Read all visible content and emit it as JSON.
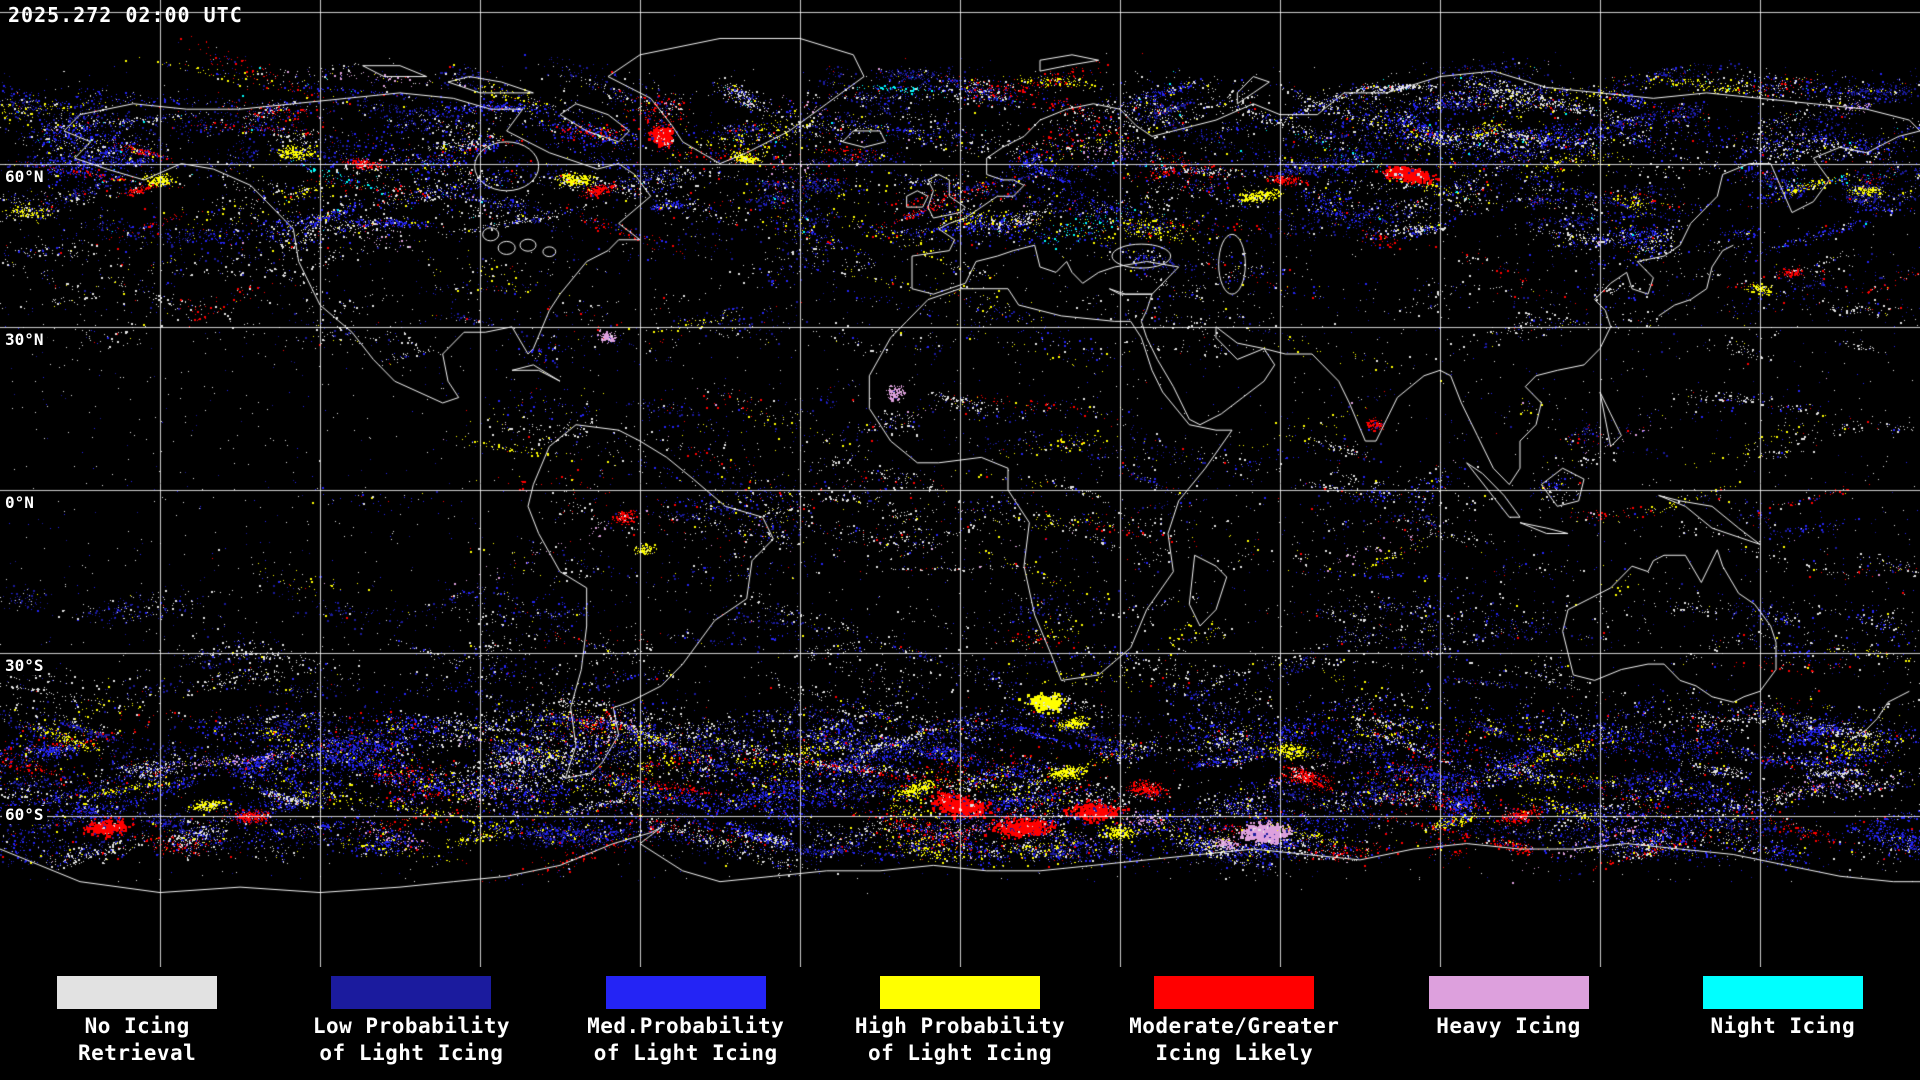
{
  "header": {
    "timestamp": "2025.272 02:00 UTC"
  },
  "map": {
    "latitude_labels": [
      "60°N",
      "30°N",
      "0°N",
      "30°S",
      "60°S"
    ],
    "background_color": "#000000",
    "gridline_color": "#ffffff",
    "coastline_color": "#ffffff"
  },
  "legend": {
    "items": [
      {
        "key": "no-icing",
        "color": "#e2e2e2",
        "line1": "No Icing",
        "line2": "Retrieval"
      },
      {
        "key": "low-light",
        "color": "#1b1b9e",
        "line1": "Low Probability",
        "line2": "of Light Icing"
      },
      {
        "key": "med-light",
        "color": "#2424f5",
        "line1": "Med.Probability",
        "line2": "of Light Icing"
      },
      {
        "key": "high-light",
        "color": "#ffff00",
        "line1": "High Probability",
        "line2": "of Light Icing"
      },
      {
        "key": "moderate-greater",
        "color": "#ff0000",
        "line1": "Moderate/Greater",
        "line2": "Icing Likely"
      },
      {
        "key": "heavy",
        "color": "#dda0dd",
        "line1": "Heavy Icing",
        "line2": ""
      },
      {
        "key": "night",
        "color": "#00ffff",
        "line1": "Night Icing",
        "line2": ""
      }
    ]
  }
}
